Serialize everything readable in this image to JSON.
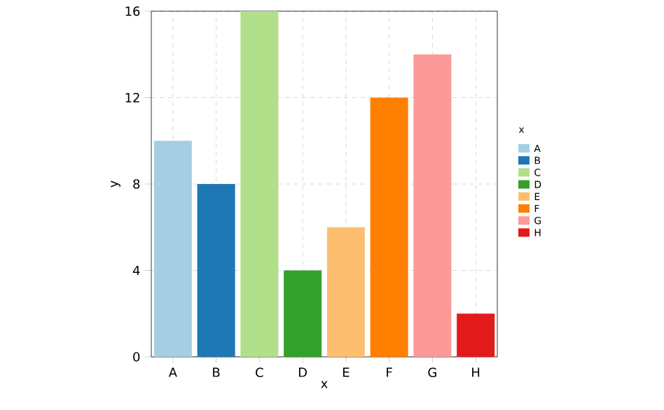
{
  "chart_data": {
    "type": "bar",
    "xlabel": "x",
    "ylabel": "y",
    "legend_title": "x",
    "stacked": true,
    "categories": [
      "A",
      "B",
      "C",
      "D",
      "E",
      "F",
      "G",
      "H"
    ],
    "series": [
      {
        "name": "A",
        "color": "#a6cee3",
        "values": [
          10,
          null,
          null,
          null,
          null,
          null,
          null,
          null
        ]
      },
      {
        "name": "B",
        "color": "#1f78b4",
        "values": [
          null,
          8,
          null,
          null,
          null,
          null,
          null,
          null
        ]
      },
      {
        "name": "C",
        "color": "#b2df8a",
        "values": [
          null,
          null,
          16,
          null,
          null,
          null,
          null,
          null
        ]
      },
      {
        "name": "D",
        "color": "#33a02c",
        "values": [
          null,
          null,
          null,
          4,
          null,
          null,
          null,
          null
        ]
      },
      {
        "name": "E",
        "color": "#fdbf6f",
        "values": [
          null,
          null,
          null,
          null,
          6,
          null,
          null,
          null
        ]
      },
      {
        "name": "F",
        "color": "#ff7f00",
        "values": [
          null,
          null,
          null,
          null,
          null,
          12,
          null,
          null
        ]
      },
      {
        "name": "G",
        "color": "#fb9a99",
        "values": [
          null,
          null,
          null,
          null,
          null,
          null,
          14,
          null
        ]
      },
      {
        "name": "H",
        "color": "#e31a1c",
        "values": [
          null,
          null,
          null,
          null,
          null,
          null,
          null,
          2
        ]
      }
    ],
    "ylim": [
      0,
      16
    ],
    "yticks": [
      0,
      4,
      8,
      12,
      16
    ],
    "grid": true,
    "legend": "right"
  }
}
